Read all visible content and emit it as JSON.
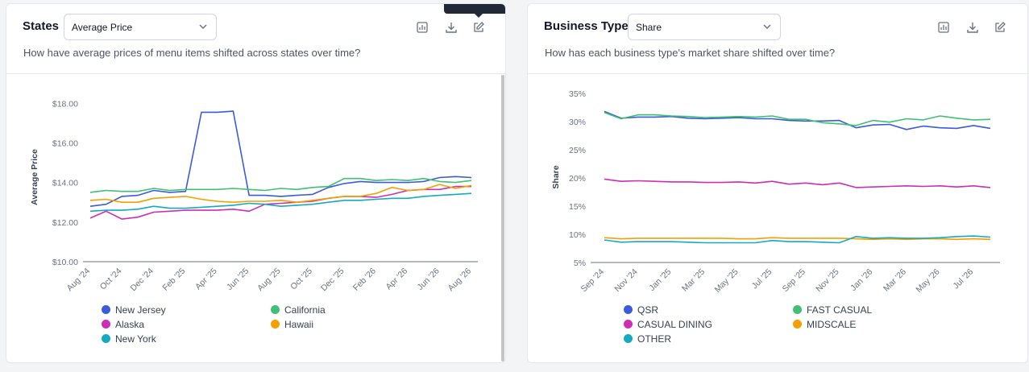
{
  "left_card": {
    "title": "States",
    "select_value": "Average Price",
    "subtitle": "How have average prices of menu items shifted across states over time?"
  },
  "right_card": {
    "title": "Business Type",
    "select_value": "Share",
    "subtitle": "How has each business type's market share shifted over time?"
  },
  "chart_data": [
    {
      "type": "line",
      "title": "States",
      "xlabel": "",
      "ylabel": "Average Price",
      "ylim": [
        10,
        18.5
      ],
      "yticks": [
        10,
        12,
        14,
        16,
        18
      ],
      "ytick_labels": [
        "$10.00",
        "$12.00",
        "$14.00",
        "$16.00",
        "$18.00"
      ],
      "x": [
        "Aug '24",
        "Sep '24",
        "Oct '24",
        "Nov '24",
        "Dec '24",
        "Jan '25",
        "Feb '25",
        "Mar '25",
        "Apr '25",
        "May '25",
        "Jun '25",
        "Jul '25",
        "Aug '25",
        "Sep '25",
        "Oct '25",
        "Nov '25",
        "Dec '25",
        "Jan '26",
        "Feb '26",
        "Mar '26",
        "Apr '26",
        "May '26",
        "Jun '26",
        "Jul '26",
        "Aug '26"
      ],
      "xtick_labels": [
        "Aug '24",
        "Oct '24",
        "Dec '24",
        "Feb '25",
        "Apr '25",
        "Jun '25",
        "Aug '25",
        "Oct '25",
        "Dec '25",
        "Feb '26",
        "Apr '26",
        "Jun '26",
        "Aug '26"
      ],
      "grid": false,
      "legend_position": "bottom",
      "series": [
        {
          "name": "New Jersey",
          "color": "#3b5bdb",
          "values": [
            12.8,
            12.9,
            13.3,
            13.35,
            13.6,
            13.5,
            13.55,
            17.55,
            17.55,
            17.6,
            13.35,
            13.35,
            13.3,
            13.35,
            13.4,
            13.75,
            13.95,
            14.05,
            14.0,
            14.0,
            14.0,
            14.05,
            14.25,
            14.3,
            14.25
          ]
        },
        {
          "name": "California",
          "color": "#40c074",
          "values": [
            13.5,
            13.6,
            13.55,
            13.55,
            13.7,
            13.6,
            13.65,
            13.65,
            13.65,
            13.7,
            13.65,
            13.6,
            13.7,
            13.65,
            13.75,
            13.8,
            14.2,
            14.2,
            14.1,
            14.15,
            14.1,
            14.2,
            14.05,
            14.0,
            14.1
          ]
        },
        {
          "name": "Alaska",
          "color": "#cc2fb5",
          "values": [
            12.2,
            12.55,
            12.15,
            12.25,
            12.5,
            12.55,
            12.6,
            12.6,
            12.6,
            12.65,
            12.55,
            12.9,
            12.95,
            13.0,
            13.05,
            13.2,
            13.3,
            13.3,
            13.25,
            13.4,
            13.6,
            13.65,
            13.65,
            13.8,
            13.8
          ]
        },
        {
          "name": "Hawaii",
          "color": "#f59f00",
          "values": [
            13.1,
            13.15,
            13.0,
            13.0,
            13.2,
            13.25,
            13.3,
            13.15,
            13.05,
            13.0,
            13.05,
            13.05,
            13.1,
            13.0,
            13.1,
            13.2,
            13.3,
            13.3,
            13.45,
            13.75,
            13.6,
            13.65,
            13.9,
            13.7,
            13.85
          ]
        },
        {
          "name": "New York",
          "color": "#15aabf",
          "values": [
            12.55,
            12.6,
            12.6,
            12.65,
            12.8,
            12.7,
            12.7,
            12.75,
            12.8,
            12.85,
            12.95,
            12.9,
            12.8,
            12.85,
            12.9,
            13.0,
            13.1,
            13.1,
            13.15,
            13.2,
            13.2,
            13.3,
            13.35,
            13.4,
            13.45
          ]
        }
      ]
    },
    {
      "type": "line",
      "title": "Business Type",
      "xlabel": "",
      "ylabel": "Share",
      "ylim": [
        5,
        35
      ],
      "yticks": [
        5,
        10,
        15,
        20,
        25,
        30,
        35
      ],
      "ytick_labels": [
        "5%",
        "10%",
        "15%",
        "20%",
        "25%",
        "30%",
        "35%"
      ],
      "x": [
        "Sep '24",
        "Oct '24",
        "Nov '24",
        "Dec '24",
        "Jan '25",
        "Feb '25",
        "Mar '25",
        "Apr '25",
        "May '25",
        "Jun '25",
        "Jul '25",
        "Aug '25",
        "Sep '25",
        "Oct '25",
        "Nov '25",
        "Dec '25",
        "Jan '26",
        "Feb '26",
        "Mar '26",
        "Apr '26",
        "May '26",
        "Jun '26",
        "Jul '26",
        "Aug '26"
      ],
      "xtick_labels": [
        "Sep '24",
        "Nov '24",
        "Jan '25",
        "Mar '25",
        "May '25",
        "Jul '25",
        "Sep '25",
        "Nov '25",
        "Jan '26",
        "Mar '26",
        "May '26",
        "Jul '26"
      ],
      "grid": false,
      "legend_position": "bottom",
      "series": [
        {
          "name": "QSR",
          "color": "#3b5bdb",
          "values": [
            31.8,
            30.6,
            30.8,
            30.8,
            30.9,
            30.6,
            30.5,
            30.6,
            30.7,
            30.5,
            30.5,
            30.2,
            30.1,
            30.1,
            30.2,
            28.9,
            29.4,
            29.5,
            28.6,
            29.2,
            28.9,
            28.8,
            29.3,
            28.8
          ]
        },
        {
          "name": "FAST CASUAL",
          "color": "#40c074",
          "values": [
            31.6,
            30.5,
            31.2,
            31.2,
            31.0,
            30.9,
            30.7,
            30.8,
            30.9,
            30.8,
            31.0,
            30.4,
            30.4,
            29.8,
            29.6,
            29.3,
            30.2,
            29.9,
            30.5,
            30.3,
            31.0,
            30.6,
            30.3,
            30.4
          ]
        },
        {
          "name": "CASUAL DINING",
          "color": "#cc2fb5",
          "values": [
            19.8,
            19.4,
            19.5,
            19.4,
            19.3,
            19.3,
            19.2,
            19.2,
            19.3,
            19.1,
            19.4,
            18.9,
            19.1,
            18.8,
            19.1,
            18.3,
            18.4,
            18.5,
            18.6,
            18.5,
            18.6,
            18.4,
            18.6,
            18.3
          ]
        },
        {
          "name": "MIDSCALE",
          "color": "#f59f00",
          "values": [
            9.4,
            9.2,
            9.3,
            9.3,
            9.3,
            9.3,
            9.3,
            9.3,
            9.2,
            9.2,
            9.4,
            9.3,
            9.3,
            9.3,
            9.3,
            9.2,
            9.1,
            9.2,
            9.1,
            9.2,
            9.2,
            9.1,
            9.2,
            9.1
          ]
        },
        {
          "name": "OTHER",
          "color": "#15aabf",
          "values": [
            9.0,
            8.6,
            8.7,
            8.7,
            8.7,
            8.6,
            8.5,
            8.5,
            8.5,
            8.5,
            8.9,
            8.7,
            8.7,
            8.6,
            8.5,
            9.6,
            9.3,
            9.4,
            9.3,
            9.3,
            9.4,
            9.6,
            9.7,
            9.5
          ]
        }
      ]
    }
  ]
}
